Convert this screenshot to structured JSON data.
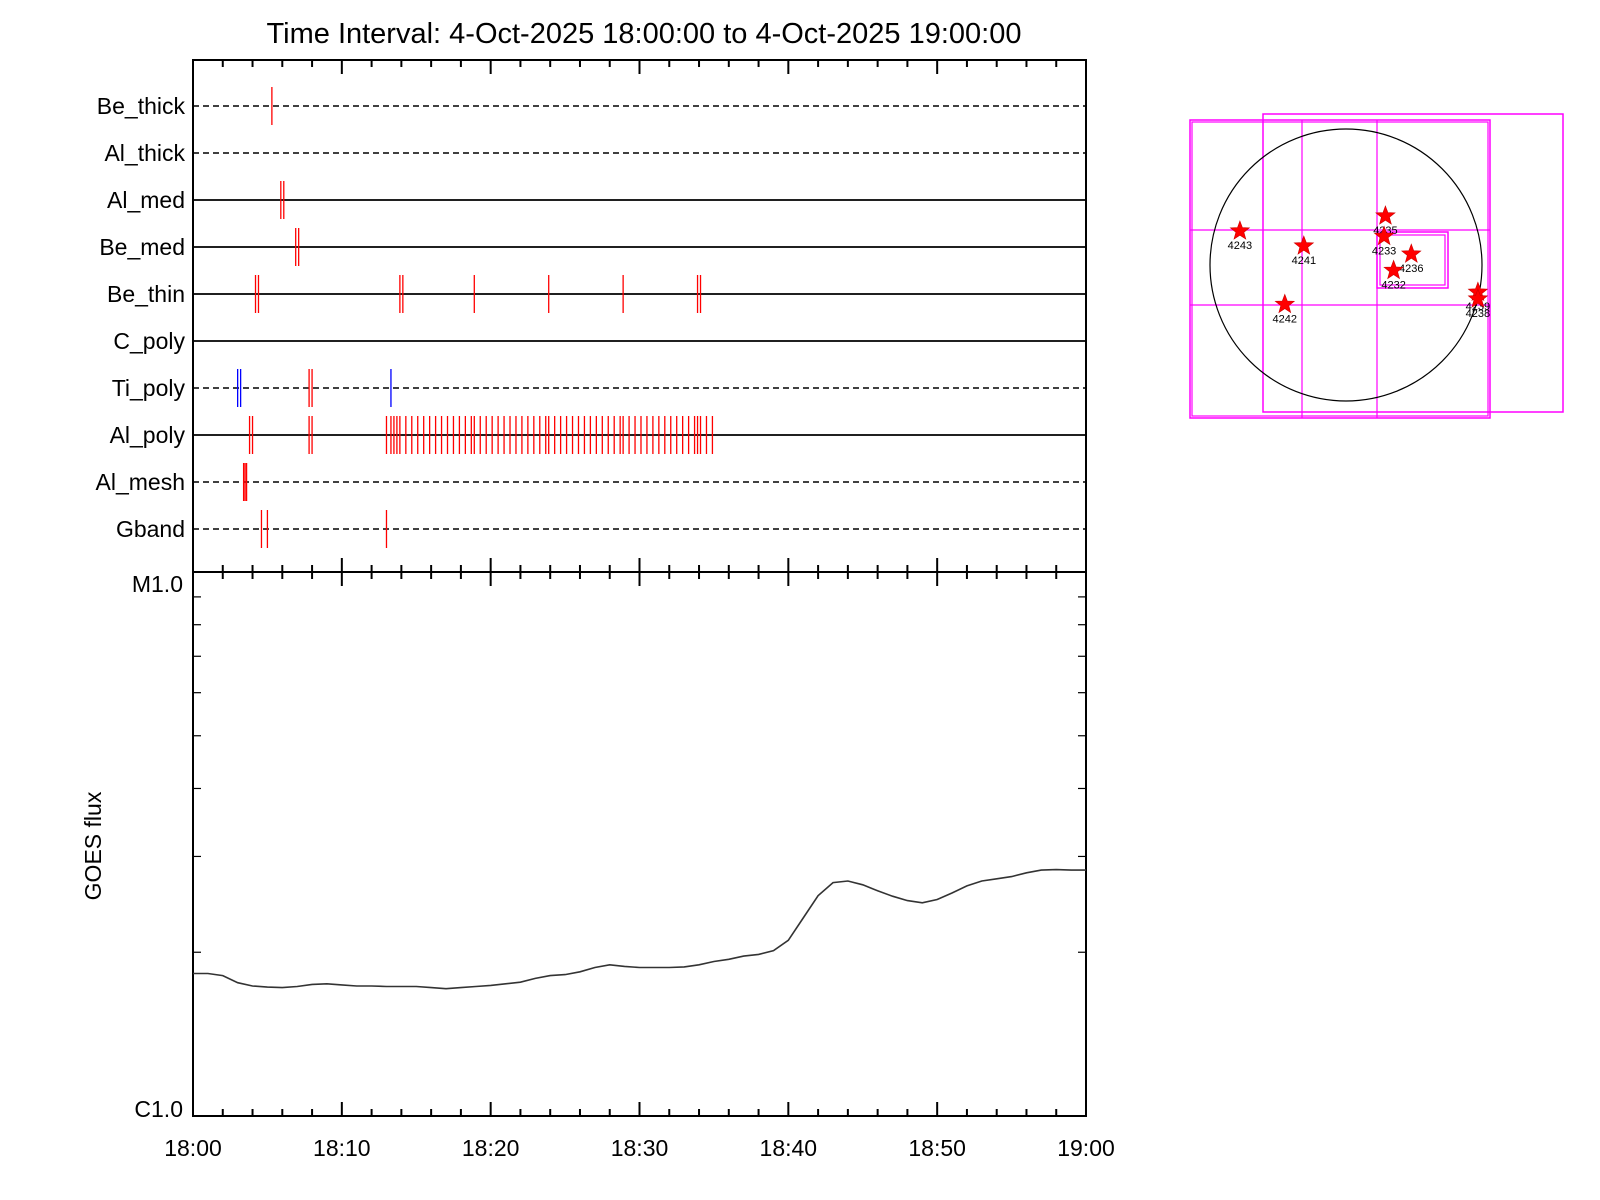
{
  "title": "Time Interval:  4-Oct-2025 18:00:00 to  4-Oct-2025 19:00:00",
  "colors": {
    "red": "#ff0000",
    "blue": "#0000ff",
    "magenta": "#ff00ff",
    "black": "#000000"
  },
  "chart_data": [
    {
      "type": "scatter",
      "name": "filter-events",
      "x_unit": "minutes after 18:00",
      "xlim": [
        0,
        60
      ],
      "rows": [
        {
          "label": "Be_thick",
          "line": "dashed",
          "events": [
            {
              "t": 5.3,
              "color": "red"
            }
          ]
        },
        {
          "label": "Al_thick",
          "line": "dashed",
          "events": []
        },
        {
          "label": "Al_med",
          "line": "solid",
          "events": [
            {
              "t": 5.9,
              "color": "red"
            },
            {
              "t": 6.1,
              "color": "red"
            }
          ]
        },
        {
          "label": "Be_med",
          "line": "solid",
          "events": [
            {
              "t": 6.9,
              "color": "red"
            },
            {
              "t": 7.1,
              "color": "red"
            }
          ]
        },
        {
          "label": "Be_thin",
          "line": "solid",
          "events": [
            {
              "t": 4.2,
              "color": "red"
            },
            {
              "t": 4.4,
              "color": "red"
            },
            {
              "t": 13.9,
              "color": "red"
            },
            {
              "t": 14.1,
              "color": "red"
            },
            {
              "t": 18.9,
              "color": "red"
            },
            {
              "t": 23.9,
              "color": "red"
            },
            {
              "t": 28.9,
              "color": "red"
            },
            {
              "t": 33.9,
              "color": "red"
            },
            {
              "t": 34.1,
              "color": "red"
            }
          ]
        },
        {
          "label": "C_poly",
          "line": "solid",
          "events": []
        },
        {
          "label": "Ti_poly",
          "line": "dashed",
          "events": [
            {
              "t": 3.0,
              "color": "blue"
            },
            {
              "t": 3.2,
              "color": "blue"
            },
            {
              "t": 7.8,
              "color": "red"
            },
            {
              "t": 8.0,
              "color": "red"
            },
            {
              "t": 13.3,
              "color": "blue"
            }
          ]
        },
        {
          "label": "Al_poly",
          "line": "solid",
          "events": [
            {
              "t": 3.8,
              "color": "red"
            },
            {
              "t": 4.0,
              "color": "red"
            },
            {
              "t": 7.8,
              "color": "red"
            },
            {
              "t": 8.0,
              "color": "red"
            },
            {
              "t": 13.0,
              "color": "red"
            },
            {
              "t": 13.3,
              "color": "red"
            },
            {
              "t": 13.5,
              "color": "red"
            },
            {
              "t": 13.7,
              "color": "red"
            },
            {
              "t": 13.9,
              "color": "red"
            },
            {
              "t": 14.3,
              "color": "red"
            },
            {
              "t": 14.7,
              "color": "red"
            },
            {
              "t": 15.1,
              "color": "red"
            },
            {
              "t": 15.5,
              "color": "red"
            },
            {
              "t": 15.9,
              "color": "red"
            },
            {
              "t": 16.3,
              "color": "red"
            },
            {
              "t": 16.7,
              "color": "red"
            },
            {
              "t": 17.1,
              "color": "red"
            },
            {
              "t": 17.5,
              "color": "red"
            },
            {
              "t": 17.9,
              "color": "red"
            },
            {
              "t": 18.3,
              "color": "red"
            },
            {
              "t": 18.7,
              "color": "red"
            },
            {
              "t": 18.9,
              "color": "red"
            },
            {
              "t": 19.3,
              "color": "red"
            },
            {
              "t": 19.7,
              "color": "red"
            },
            {
              "t": 20.1,
              "color": "red"
            },
            {
              "t": 20.5,
              "color": "red"
            },
            {
              "t": 20.9,
              "color": "red"
            },
            {
              "t": 21.3,
              "color": "red"
            },
            {
              "t": 21.7,
              "color": "red"
            },
            {
              "t": 22.1,
              "color": "red"
            },
            {
              "t": 22.5,
              "color": "red"
            },
            {
              "t": 22.9,
              "color": "red"
            },
            {
              "t": 23.3,
              "color": "red"
            },
            {
              "t": 23.7,
              "color": "red"
            },
            {
              "t": 23.9,
              "color": "red"
            },
            {
              "t": 24.3,
              "color": "red"
            },
            {
              "t": 24.7,
              "color": "red"
            },
            {
              "t": 25.1,
              "color": "red"
            },
            {
              "t": 25.5,
              "color": "red"
            },
            {
              "t": 25.9,
              "color": "red"
            },
            {
              "t": 26.3,
              "color": "red"
            },
            {
              "t": 26.7,
              "color": "red"
            },
            {
              "t": 27.1,
              "color": "red"
            },
            {
              "t": 27.5,
              "color": "red"
            },
            {
              "t": 27.9,
              "color": "red"
            },
            {
              "t": 28.3,
              "color": "red"
            },
            {
              "t": 28.7,
              "color": "red"
            },
            {
              "t": 28.9,
              "color": "red"
            },
            {
              "t": 29.3,
              "color": "red"
            },
            {
              "t": 29.7,
              "color": "red"
            },
            {
              "t": 30.1,
              "color": "red"
            },
            {
              "t": 30.5,
              "color": "red"
            },
            {
              "t": 30.9,
              "color": "red"
            },
            {
              "t": 31.3,
              "color": "red"
            },
            {
              "t": 31.7,
              "color": "red"
            },
            {
              "t": 32.1,
              "color": "red"
            },
            {
              "t": 32.5,
              "color": "red"
            },
            {
              "t": 32.9,
              "color": "red"
            },
            {
              "t": 33.3,
              "color": "red"
            },
            {
              "t": 33.7,
              "color": "red"
            },
            {
              "t": 33.9,
              "color": "red"
            },
            {
              "t": 34.1,
              "color": "red"
            },
            {
              "t": 34.5,
              "color": "red"
            },
            {
              "t": 34.9,
              "color": "red"
            }
          ]
        },
        {
          "label": "Al_mesh",
          "line": "dashed",
          "events": [
            {
              "t": 3.4,
              "color": "red"
            },
            {
              "t": 3.5,
              "color": "red"
            },
            {
              "t": 3.6,
              "color": "red"
            }
          ]
        },
        {
          "label": "Gband",
          "line": "dashed",
          "events": [
            {
              "t": 4.6,
              "color": "red"
            },
            {
              "t": 5.0,
              "color": "red"
            },
            {
              "t": 13.0,
              "color": "red"
            }
          ]
        }
      ]
    },
    {
      "type": "line",
      "name": "goes-flux",
      "ylabel": "GOES flux",
      "y_scale": "log",
      "ylim_labels": [
        "C1.0",
        "M1.0"
      ],
      "y_fraction_of_decade": "position between C1.0 (0) and M1.0 (1) on log scale",
      "x_unit": "minutes after 18:00",
      "xticks": [
        "18:00",
        "18:10",
        "18:20",
        "18:30",
        "18:40",
        "18:50",
        "19:00"
      ],
      "x": [
        0,
        1,
        2,
        3,
        4,
        5,
        6,
        7,
        8,
        9,
        10,
        11,
        12,
        13,
        14,
        15,
        16,
        17,
        18,
        19,
        20,
        21,
        22,
        23,
        24,
        25,
        26,
        27,
        28,
        29,
        30,
        31,
        32,
        33,
        34,
        35,
        36,
        37,
        38,
        39,
        40,
        41,
        42,
        43,
        44,
        45,
        46,
        47,
        48,
        49,
        50,
        51,
        52,
        53,
        54,
        55,
        56,
        57,
        58,
        59,
        60
      ],
      "y": [
        0.262,
        0.262,
        0.258,
        0.245,
        0.239,
        0.237,
        0.236,
        0.238,
        0.242,
        0.243,
        0.241,
        0.239,
        0.239,
        0.238,
        0.238,
        0.238,
        0.236,
        0.234,
        0.236,
        0.238,
        0.24,
        0.243,
        0.246,
        0.253,
        0.258,
        0.26,
        0.265,
        0.273,
        0.278,
        0.275,
        0.273,
        0.273,
        0.273,
        0.274,
        0.278,
        0.284,
        0.288,
        0.294,
        0.297,
        0.304,
        0.323,
        0.364,
        0.405,
        0.429,
        0.432,
        0.425,
        0.414,
        0.404,
        0.396,
        0.392,
        0.398,
        0.41,
        0.423,
        0.432,
        0.436,
        0.44,
        0.447,
        0.452,
        0.453,
        0.452,
        0.452
      ]
    },
    {
      "type": "scatter",
      "name": "solar-disk-map",
      "regions": [
        {
          "label": "4243",
          "x": -0.78,
          "y": 0.25
        },
        {
          "label": "4241",
          "x": -0.31,
          "y": 0.14
        },
        {
          "label": "4235",
          "x": 0.29,
          "y": 0.36
        },
        {
          "label": "4233",
          "x": 0.28,
          "y": 0.21
        },
        {
          "label": "4236",
          "x": 0.48,
          "y": 0.08
        },
        {
          "label": "4232",
          "x": 0.35,
          "y": -0.04
        },
        {
          "label": "4242",
          "x": -0.45,
          "y": -0.29
        },
        {
          "label": "4239",
          "x": 0.97,
          "y": -0.2
        },
        {
          "label": "4238",
          "x": 0.97,
          "y": -0.25
        }
      ]
    }
  ]
}
